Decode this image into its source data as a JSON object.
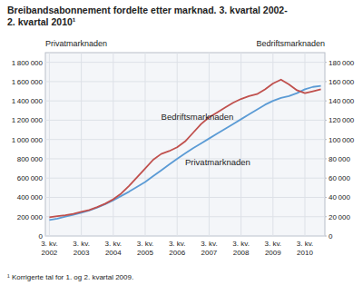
{
  "chart_data": {
    "type": "line",
    "title": [
      "Breibandsabonnement fordelte etter marknad. 3. kvartal 2002-",
      "2. kvartal 2010¹"
    ],
    "footnote": "¹ Korrigerte tal for 1. og 2. kvartal 2009.",
    "ylabel": "Privatmarknaden",
    "y2label": "Bedriftsmarknaden",
    "categories": [
      "3. kv.\n2002",
      null,
      null,
      null,
      "3. kv.\n2003",
      null,
      null,
      null,
      "3. kv.\n2004",
      null,
      null,
      null,
      "3. kv.\n2005",
      null,
      null,
      null,
      "3. kv.\n2006",
      null,
      null,
      null,
      "3. kv.\n2007",
      null,
      null,
      null,
      "3. kv.\n2008",
      null,
      null,
      null,
      "3. kv.\n2009",
      null,
      null,
      null,
      "3. kv.\n2010",
      null,
      null
    ],
    "series": [
      {
        "color": "#5b9bd5",
        "values": [
          165000,
          180000,
          200000,
          220000,
          240000,
          265000,
          295000,
          330000,
          370000,
          415000,
          460000,
          510000,
          560000,
          620000,
          680000,
          740000,
          800000,
          855000,
          910000,
          960000,
          1010000,
          1060000,
          1110000,
          1160000,
          1210000,
          1260000,
          1310000,
          1360000,
          1400000,
          1430000,
          1450000,
          1480000,
          1520000,
          1545000,
          1555000
        ]
      },
      {
        "color": "#c0504d",
        "axis": "y2",
        "values": [
          19500,
          20500,
          21500,
          23000,
          25000,
          27000,
          30000,
          33500,
          38000,
          44000,
          52000,
          61000,
          70000,
          79000,
          85000,
          88000,
          92000,
          98000,
          107000,
          116000,
          123000,
          128000,
          133000,
          138000,
          142000,
          145000,
          147000,
          152000,
          158000,
          162000,
          157000,
          151000,
          148000,
          150000,
          152000
        ]
      }
    ],
    "ylim": [
      0,
      1900000
    ],
    "yticks": [
      0,
      {
        "value": 200000,
        "label": "200 000"
      },
      {
        "value": 400000,
        "label": "400 000"
      },
      {
        "value": 600000,
        "label": "600 000"
      },
      {
        "value": 800000,
        "label": "800 000"
      },
      {
        "value": 1000000,
        "label": "1 000 000"
      },
      {
        "value": 1200000,
        "label": "1 200 000"
      },
      {
        "value": 1400000,
        "label": "1 400 000"
      },
      {
        "value": 1600000,
        "label": "1 600 000"
      },
      {
        "value": 1800000,
        "label": "1 800 000"
      }
    ],
    "y2lim": [
      0,
      190000
    ],
    "y2ticks": [
      0,
      {
        "value": 20000,
        "label": "20 000"
      },
      {
        "value": 40000,
        "label": "40 000"
      },
      {
        "value": 60000,
        "label": "60 000"
      },
      {
        "value": 80000,
        "label": "80 000"
      },
      {
        "value": 100000,
        "label": "100 000"
      },
      {
        "value": 120000,
        "label": "120 000"
      },
      {
        "value": 140000,
        "label": "140 000"
      },
      {
        "value": 160000,
        "label": "160 000"
      },
      {
        "value": 180000,
        "label": "180 000"
      }
    ],
    "annotations": [
      {
        "text": "Privatmarknaden",
        "x": 17,
        "y": 770000
      },
      {
        "text": "Bedriftsmarknaden",
        "x": 14,
        "y": 1235000
      }
    ],
    "grid": true
  }
}
